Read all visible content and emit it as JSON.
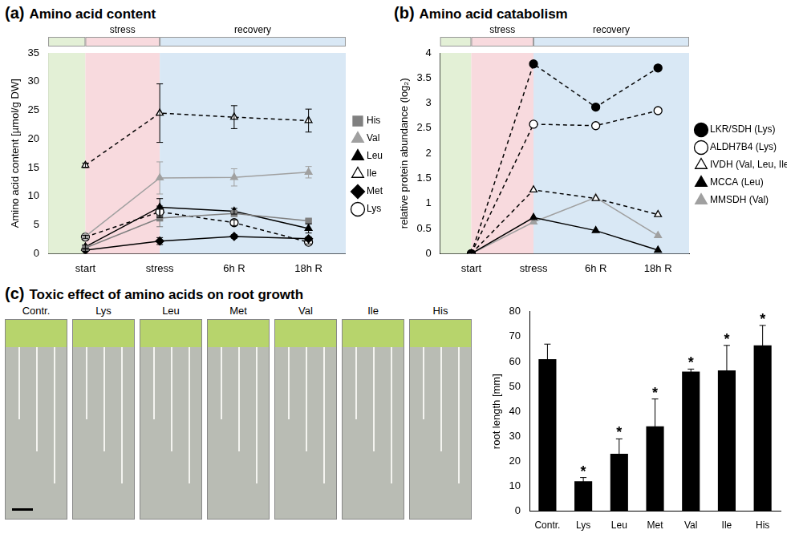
{
  "chart_data": [
    {
      "type": "line",
      "panel": "(a)",
      "title": "Amino acid content",
      "annotations": [
        "stress",
        "recovery"
      ],
      "categories": [
        "start",
        "stress",
        "6h R",
        "18h R"
      ],
      "y_label": "Amino acid content [µmol/g DW]",
      "ylim": [
        0,
        35
      ],
      "yticks": [
        0,
        5,
        10,
        15,
        20,
        25,
        30,
        35
      ],
      "grid": false,
      "legend": "right",
      "series": [
        {
          "name": "His",
          "color": "#808080",
          "marker": "square",
          "line_style": "solid",
          "values": [
            1.0,
            6.2,
            7.0,
            5.7
          ],
          "errors": [
            0.3,
            1.5,
            0.5,
            0.3
          ]
        },
        {
          "name": "Val",
          "color": "#a0a0a0",
          "marker": "triangle",
          "line_style": "solid",
          "values": [
            3.0,
            13.2,
            13.3,
            14.2
          ],
          "errors": [
            0.3,
            2.8,
            1.5,
            1.0
          ]
        },
        {
          "name": "Leu",
          "color": "#000000",
          "marker": "triangle",
          "line_style": "solid",
          "values": [
            1.2,
            8.1,
            7.4,
            4.4
          ],
          "errors": [
            0.3,
            1.5,
            0.5,
            0.8
          ]
        },
        {
          "name": "Ile",
          "color": "#000000",
          "marker": "open-triangle",
          "line_style": "dashed",
          "values": [
            15.4,
            24.5,
            23.8,
            23.2
          ],
          "errors": [
            0.4,
            5.1,
            2.0,
            2.0
          ]
        },
        {
          "name": "Met",
          "color": "#000000",
          "marker": "diamond",
          "line_style": "solid",
          "values": [
            0.6,
            2.2,
            3.0,
            2.6
          ],
          "errors": [
            0.2,
            0.6,
            0.3,
            0.3
          ]
        },
        {
          "name": "Lys",
          "color": "#000000",
          "marker": "open-circle",
          "line_style": "dashed",
          "values": [
            2.9,
            7.3,
            5.4,
            2.0
          ],
          "errors": [
            0.3,
            1.0,
            0.5,
            0.3
          ]
        }
      ]
    },
    {
      "type": "line",
      "panel": "(b)",
      "title": "Amino acid catabolism",
      "annotations": [
        "stress",
        "recovery"
      ],
      "categories": [
        "start",
        "stress",
        "6h R",
        "18h R"
      ],
      "y_label": "relative protein abundance (log₂)",
      "ylim": [
        0,
        4
      ],
      "yticks": [
        0,
        0.5,
        1,
        1.5,
        2,
        2.5,
        3,
        3.5,
        4
      ],
      "grid": false,
      "legend": "right",
      "series": [
        {
          "name": "LKR/SDH (Lys)",
          "color": "#000000",
          "marker": "circle",
          "line_style": "dashed",
          "values": [
            0,
            3.78,
            2.92,
            3.7
          ]
        },
        {
          "name": "ALDH7B4 (Lys)",
          "color": "#000000",
          "marker": "open-circle",
          "line_style": "dashed",
          "values": [
            0,
            2.58,
            2.55,
            2.85
          ]
        },
        {
          "name": "IVDH (Val, Leu, Ile)",
          "color": "#000000",
          "marker": "open-triangle",
          "line_style": "dashed",
          "values": [
            0,
            1.27,
            1.1,
            0.78
          ]
        },
        {
          "name": "MCCA (Leu)",
          "color": "#000000",
          "marker": "triangle",
          "line_style": "solid",
          "values": [
            0,
            0.72,
            0.46,
            0.07
          ]
        },
        {
          "name": "MMSDH (Val)",
          "color": "#a0a0a0",
          "marker": "triangle",
          "line_style": "solid",
          "values": [
            0,
            0.63,
            1.12,
            0.36
          ]
        }
      ]
    },
    {
      "type": "bar",
      "panel": "(c)",
      "title": "Toxic effect of amino acids on root growth",
      "photo_labels": [
        "Contr.",
        "Lys",
        "Leu",
        "Met",
        "Val",
        "Ile",
        "His"
      ],
      "categories": [
        "Contr.",
        "Lys",
        "Leu",
        "Met",
        "Val",
        "Ile",
        "His"
      ],
      "y_label": "root length [mm]",
      "ylim": [
        0,
        80
      ],
      "yticks": [
        0,
        10,
        20,
        30,
        40,
        50,
        60,
        70,
        80
      ],
      "grid": false,
      "color": "#000000",
      "values": [
        61,
        12,
        23,
        34,
        56,
        56.5,
        66.5
      ],
      "errors": [
        6,
        1.5,
        6,
        11,
        1,
        10,
        8
      ],
      "significance": [
        null,
        "*",
        "*",
        "*",
        "*",
        "*",
        "*"
      ]
    }
  ]
}
